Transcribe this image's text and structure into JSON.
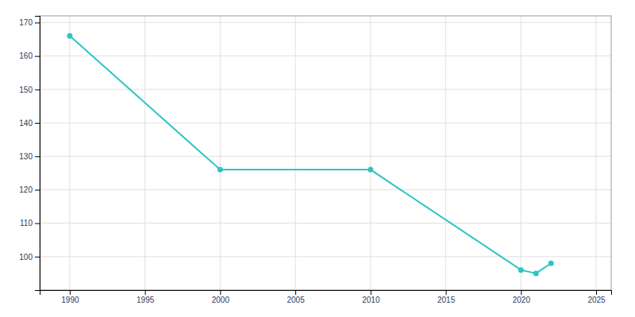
{
  "chart_data": {
    "type": "line",
    "x": [
      1990,
      2000,
      2010,
      2020,
      2021,
      2022
    ],
    "values": [
      166,
      126,
      126,
      96,
      95,
      98
    ],
    "color": "#2EC4C4",
    "marker": "circle",
    "xlim": [
      1988,
      2026
    ],
    "ylim": [
      90,
      172
    ],
    "xticks": [
      1990,
      1995,
      2000,
      2005,
      2010,
      2015,
      2020,
      2025
    ],
    "yticks": [
      100,
      110,
      120,
      130,
      140,
      150,
      160,
      170
    ],
    "grid": true
  }
}
